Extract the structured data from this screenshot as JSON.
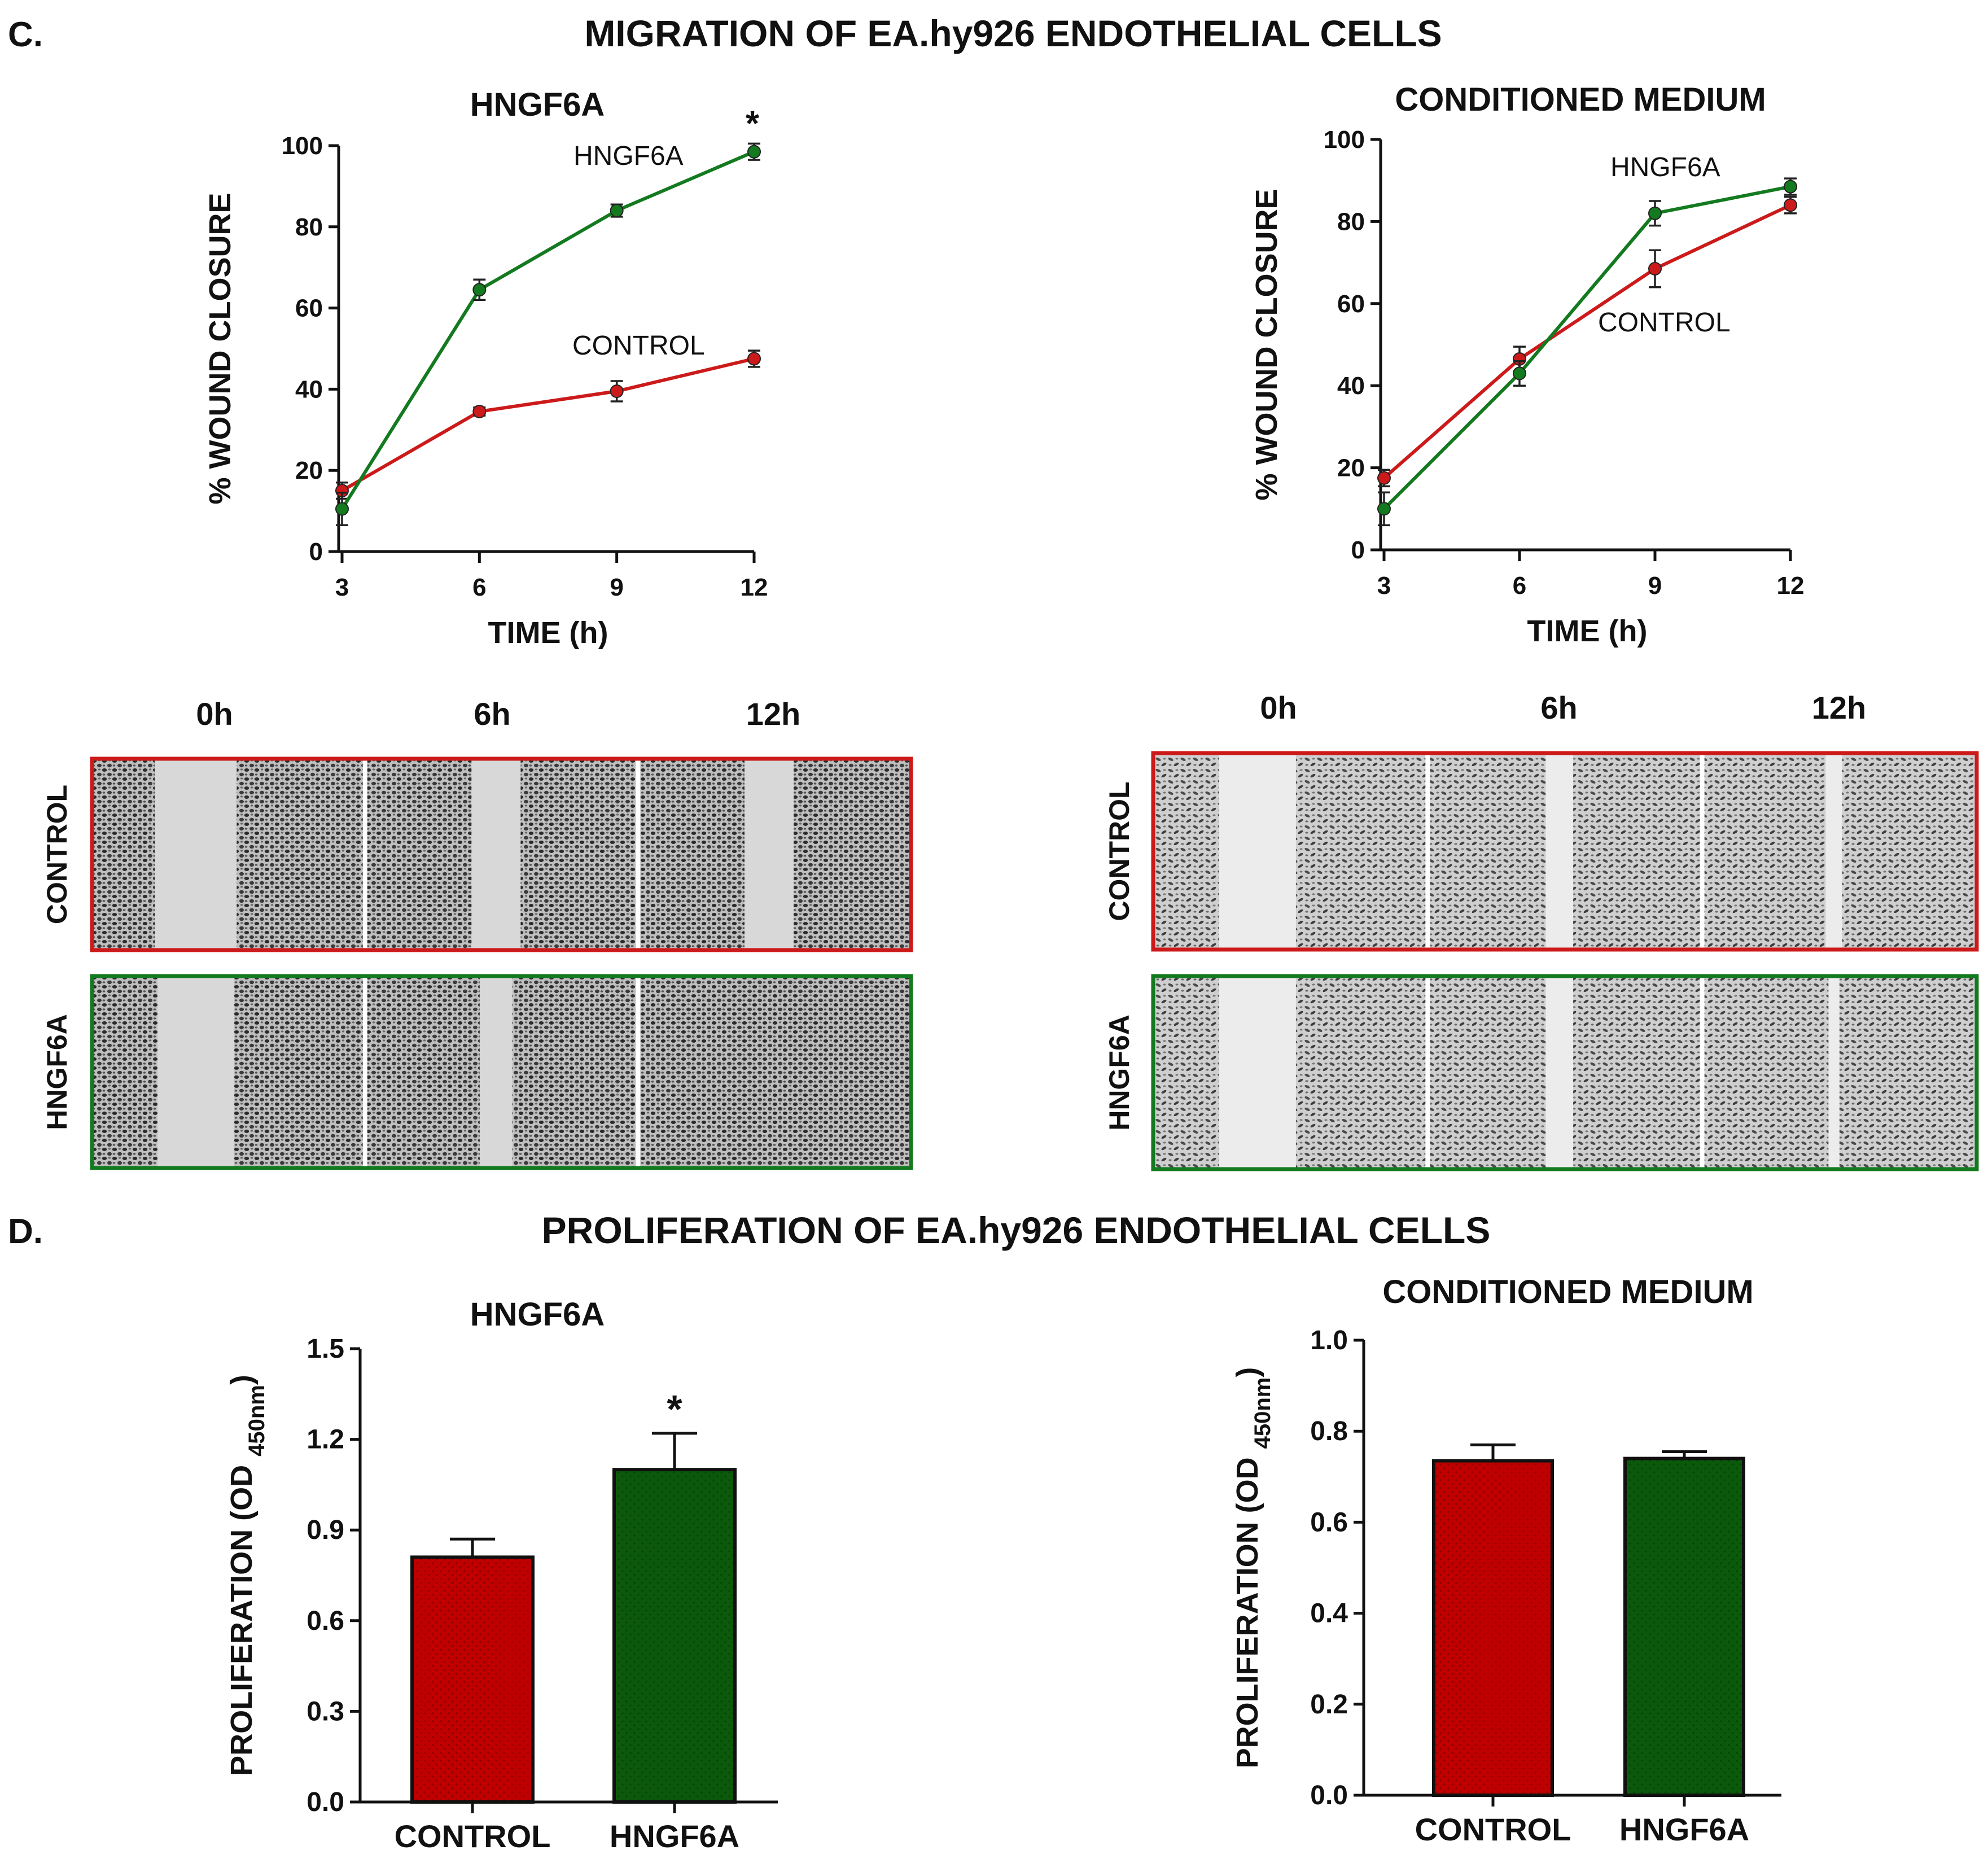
{
  "colors": {
    "control": "#cc1a1a",
    "control_bar": "#c00000",
    "hngf6a": "#137a1f",
    "hngf6a_bar": "#0b5a0b",
    "axis": "#111111",
    "micro_bg": "#d8d8d8",
    "micro_gap_light": "#ececec"
  },
  "section_c": {
    "panel_letter": "C.",
    "title": "MIGRATION OF EA.hy926 ENDOTHELIAL CELLS"
  },
  "section_d": {
    "panel_letter": "D.",
    "title": "PROLIFERATION OF EA.hy926 ENDOTHELIAL CELLS"
  },
  "micrographs": {
    "left": {
      "time_labels": [
        "0h",
        "6h",
        "12h"
      ],
      "rows": [
        {
          "label": "CONTROL",
          "series": "control",
          "gap_fraction": [
            0.3,
            0.18,
            0.18
          ]
        },
        {
          "label": "HNGF6A",
          "series": "hngf6a",
          "gap_fraction": [
            0.28,
            0.12,
            0.0
          ]
        }
      ]
    },
    "right": {
      "time_labels": [
        "0h",
        "6h",
        "12h"
      ],
      "rows": [
        {
          "label": "CONTROL",
          "series": "control",
          "gap_fraction": [
            0.28,
            0.1,
            0.06
          ]
        },
        {
          "label": "HNGF6A",
          "series": "hngf6a",
          "gap_fraction": [
            0.28,
            0.1,
            0.04
          ]
        }
      ]
    }
  },
  "chart_data": [
    {
      "type": "line",
      "title": "HNGF6A",
      "xlabel": "TIME (h)",
      "ylabel": "% WOUND CLOSURE",
      "x": [
        3,
        6,
        9,
        12
      ],
      "xlim": [
        3,
        12
      ],
      "ylim": [
        0,
        100
      ],
      "yticks": [
        0,
        20,
        40,
        60,
        80,
        100
      ],
      "series": [
        {
          "name": "HNGF6A",
          "color_key": "hngf6a",
          "values": [
            10.5,
            64.5,
            84,
            98.5
          ],
          "errors": [
            4,
            2.5,
            1.5,
            2
          ]
        },
        {
          "name": "CONTROL",
          "color_key": "control",
          "values": [
            15,
            34.5,
            39.5,
            47.5
          ],
          "errors": [
            2,
            1,
            2.5,
            2
          ]
        }
      ],
      "annotations": [
        "*"
      ]
    },
    {
      "type": "line",
      "title": "CONDITIONED MEDIUM",
      "xlabel": "TIME (h)",
      "ylabel": "% WOUND CLOSURE",
      "x": [
        3,
        6,
        9,
        12
      ],
      "xlim": [
        3,
        12
      ],
      "ylim": [
        0,
        100
      ],
      "yticks": [
        0,
        20,
        40,
        60,
        80,
        100
      ],
      "series": [
        {
          "name": "HNGF6A",
          "color_key": "hngf6a",
          "values": [
            10,
            43,
            82,
            88.5
          ],
          "errors": [
            4,
            3,
            3,
            2
          ]
        },
        {
          "name": "CONTROL",
          "color_key": "control",
          "values": [
            17.5,
            46.5,
            68.5,
            84
          ],
          "errors": [
            2,
            3,
            4.5,
            2
          ]
        }
      ]
    },
    {
      "type": "bar",
      "title": "HNGF6A",
      "ylabel": "PROLIFERATION (OD",
      "ylabel_sub": "450nm",
      "ylabel_close": ")",
      "categories": [
        "CONTROL",
        "HNGF6A"
      ],
      "values": [
        0.81,
        1.1
      ],
      "errors": [
        0.06,
        0.12
      ],
      "color_keys": [
        "control_bar",
        "hngf6a_bar"
      ],
      "ylim": [
        0,
        1.5
      ],
      "yticks": [
        "0.0",
        "0.3",
        "0.6",
        "0.9",
        "1.2",
        "1.5"
      ],
      "annotations": [
        "*"
      ]
    },
    {
      "type": "bar",
      "title": "CONDITIONED MEDIUM",
      "ylabel": "PROLIFERATION (OD",
      "ylabel_sub": "450nm",
      "ylabel_close": ")",
      "categories": [
        "CONTROL",
        "HNGF6A"
      ],
      "values": [
        0.735,
        0.74
      ],
      "errors": [
        0.035,
        0.015
      ],
      "color_keys": [
        "control_bar",
        "hngf6a_bar"
      ],
      "ylim": [
        0,
        1.0
      ],
      "yticks": [
        "0.0",
        "0.2",
        "0.4",
        "0.6",
        "0.8",
        "1.0"
      ]
    }
  ]
}
